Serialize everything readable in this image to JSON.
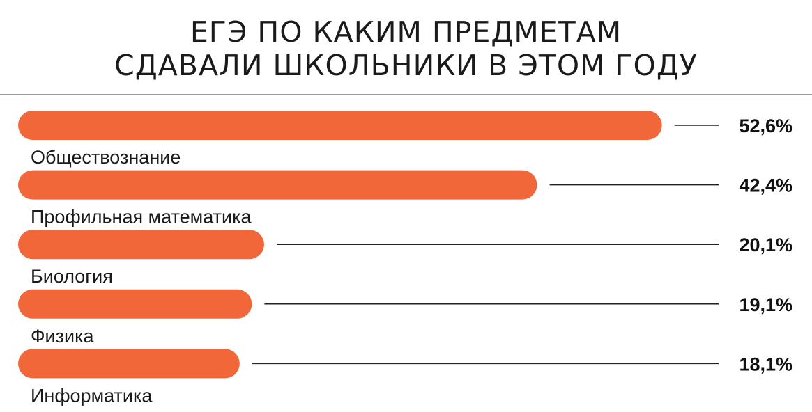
{
  "title_lines": [
    "ЕГЭ ПО КАКИМ ПРЕДМЕТАМ",
    "СДАВАЛИ ШКОЛЬНИКИ В ЭТОМ ГОДУ"
  ],
  "colors": {
    "bar": "#f26739",
    "leader_line": "#222222",
    "divider": "#9a9a9a"
  },
  "chart_data": {
    "type": "bar",
    "orientation": "horizontal",
    "title": "ЕГЭ ПО КАКИМ ПРЕДМЕТАМ СДАВАЛИ ШКОЛЬНИКИ В ЭТОМ ГОДУ",
    "categories": [
      "Обществознание",
      "Профильная математика",
      "Биология",
      "Физика",
      "Информатика"
    ],
    "values": [
      52.6,
      42.4,
      20.1,
      19.1,
      18.1
    ],
    "value_labels": [
      "52,6%",
      "42,4%",
      "20,1%",
      "19,1%",
      "18,1%"
    ],
    "unit": "%",
    "xlim": [
      0,
      100
    ],
    "grid": false,
    "legend": "none"
  }
}
